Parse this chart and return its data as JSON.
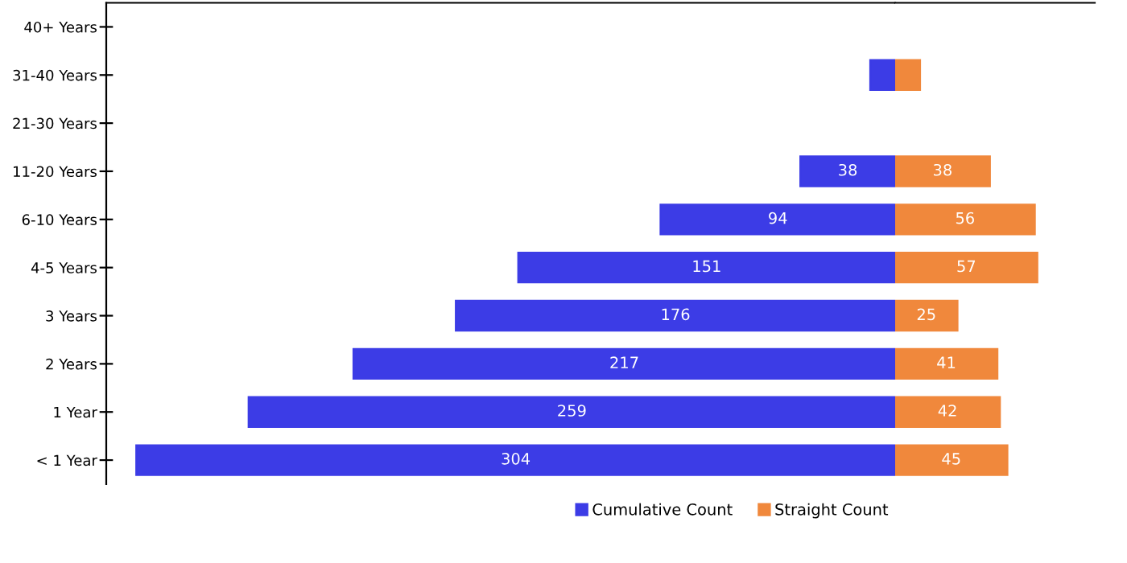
{
  "chart_data": [
    {
      "type": "bar",
      "orientation": "horizontal",
      "categories": [
        "40+ Years",
        "31-40 Years",
        "21-30 Years",
        "11-20 Years",
        "6-10 Years",
        "4-5 Years",
        "3 Years",
        "2 Years",
        "1 Year",
        "< 1 Year"
      ],
      "series": [
        {
          "name": "Cumulative Count",
          "color": "#3c3ce6",
          "values": [
            null,
            10,
            null,
            38,
            94,
            151,
            176,
            217,
            259,
            304
          ],
          "value_labels": [
            null,
            null,
            null,
            "38",
            "94",
            "151",
            "176",
            "217",
            "259",
            "304"
          ]
        }
      ],
      "xlim": [
        316,
        0
      ],
      "tick_labels": "y",
      "legend": "bottom"
    },
    {
      "type": "bar",
      "orientation": "horizontal",
      "categories": [
        null,
        null,
        null,
        null,
        null,
        null,
        null,
        null,
        null,
        null
      ],
      "series": [
        {
          "name": "Straight Count",
          "color": "#f0883c",
          "values": [
            null,
            10,
            null,
            38,
            56,
            57,
            25,
            41,
            42,
            45
          ],
          "value_labels": [
            null,
            null,
            null,
            "38",
            "56",
            "57",
            "25",
            "41",
            "42",
            "45"
          ]
        }
      ],
      "xlim": [
        0,
        80
      ],
      "tick_labels": false,
      "legend": "bottom"
    }
  ]
}
